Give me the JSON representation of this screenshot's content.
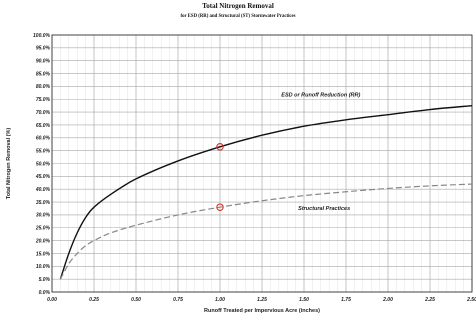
{
  "chart_data": {
    "type": "line",
    "title": "Total Nitrogen Removal",
    "subtitle": "for ESD (RR) and Structural (ST) Stormwater Practices",
    "xlabel": "Runoff Treated per Impervious Acre (inches)",
    "ylabel": "Total Nitrogen Removal (%)",
    "xlim": [
      0,
      2.5
    ],
    "ylim": [
      0,
      100
    ],
    "x_ticks": [
      "0.00",
      "0.25",
      "0.50",
      "0.75",
      "1.00",
      "1.25",
      "1.50",
      "1.75",
      "2.00",
      "2.25",
      "2.50"
    ],
    "y_ticks": [
      "0.0%",
      "5.0%",
      "10.0%",
      "15.0%",
      "20.0%",
      "25.0%",
      "30.0%",
      "35.0%",
      "40.0%",
      "45.0%",
      "50.0%",
      "55.0%",
      "60.0%",
      "65.0%",
      "70.0%",
      "75.0%",
      "80.0%",
      "85.0%",
      "90.0%",
      "95.0%",
      "100.0%"
    ],
    "grid": true,
    "series": [
      {
        "name": "ESD or Runoff Reduction (RR)",
        "style": "solid",
        "color": "#111111",
        "x": [
          0.05,
          0.1,
          0.15,
          0.2,
          0.25,
          0.35,
          0.5,
          0.75,
          1.0,
          1.25,
          1.5,
          1.75,
          2.0,
          2.25,
          2.5
        ],
        "y": [
          5,
          15,
          23,
          29,
          33,
          38,
          44,
          51,
          56.5,
          61,
          64.5,
          67,
          69,
          71,
          72.5
        ],
        "marker": {
          "x": 1.0,
          "y": 56.5
        }
      },
      {
        "name": "Structural Practices",
        "style": "dashed",
        "color": "#888888",
        "x": [
          0.05,
          0.1,
          0.15,
          0.2,
          0.25,
          0.35,
          0.5,
          0.75,
          1.0,
          1.25,
          1.5,
          1.75,
          2.0,
          2.25,
          2.5
        ],
        "y": [
          5,
          11,
          15,
          18,
          20,
          23,
          26,
          30,
          33,
          35.5,
          37.5,
          39,
          40.3,
          41.3,
          42
        ],
        "marker": {
          "x": 1.0,
          "y": 33
        }
      }
    ],
    "annotations": [
      {
        "text": "ESD or Runoff Reduction (RR)",
        "x": 1.6,
        "y": 76
      },
      {
        "text": "Structural Practices",
        "x": 1.62,
        "y": 32
      }
    ],
    "marker_color": "#d9312b"
  }
}
